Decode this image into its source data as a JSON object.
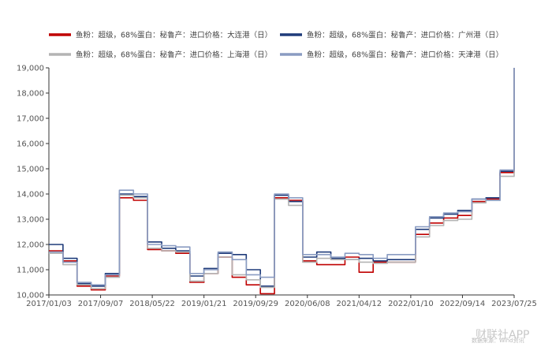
{
  "chart_data": {
    "type": "line",
    "title": "",
    "xlabel": "",
    "ylabel": "",
    "ylim": [
      10000,
      19000
    ],
    "y_ticks": [
      "10,000",
      "11,000",
      "12,000",
      "13,000",
      "14,000",
      "15,000",
      "16,000",
      "17,000",
      "18,000",
      "19,000"
    ],
    "x_ticks": [
      "2017/01/03",
      "2017/09/07",
      "2018/05/22",
      "2019/01/21",
      "2019/09/29",
      "2020/06/08",
      "2021/04/12",
      "2022/01/10",
      "2022/09/14",
      "2023/07/25"
    ],
    "grid": false,
    "legend_position": "top",
    "series": [
      {
        "name": "鱼粉：超级，68%蛋白：秘鲁产：进口价格：大连港（日）",
        "color": "#c00000",
        "values": [
          11750,
          11350,
          10350,
          10200,
          10750,
          13850,
          13750,
          11800,
          11750,
          11650,
          10500,
          10850,
          11500,
          10700,
          10400,
          10050,
          13850,
          13750,
          11350,
          11200,
          11200,
          11500,
          10900,
          11300,
          11300,
          11300,
          12400,
          12850,
          13050,
          13150,
          13700,
          13800,
          14850,
          19000
        ]
      },
      {
        "name": "鱼粉：超级，68%蛋白：秘鲁产：进口价格：广州港（日）",
        "color": "#1f3b7a",
        "values": [
          12000,
          11450,
          10450,
          10350,
          10850,
          14000,
          13900,
          12100,
          11850,
          11750,
          10750,
          11050,
          11650,
          11600,
          11000,
          10350,
          13950,
          13700,
          11500,
          11700,
          11450,
          11400,
          11450,
          11350,
          11400,
          11400,
          12600,
          13050,
          13200,
          13350,
          13800,
          13850,
          14900,
          19000
        ]
      },
      {
        "name": "鱼粉：超级，68%蛋白：秘鲁产：进口价格：上海港（日）",
        "color": "#b4b4b4",
        "values": [
          11650,
          11200,
          10400,
          10250,
          10700,
          13950,
          13850,
          11850,
          11750,
          11700,
          10550,
          10850,
          11500,
          10800,
          10600,
          10300,
          13800,
          13550,
          11300,
          11450,
          11400,
          11400,
          11300,
          11250,
          11300,
          11300,
          12300,
          12750,
          12950,
          13000,
          13650,
          13750,
          14700,
          19000
        ]
      },
      {
        "name": "鱼粉：超级，68%蛋白：秘鲁产：进口价格：天津港（日）",
        "color": "#8a9cc2",
        "values": [
          11700,
          11300,
          10500,
          10400,
          10800,
          14150,
          14000,
          12000,
          11950,
          11900,
          10850,
          11000,
          11700,
          11400,
          10800,
          10700,
          14000,
          13850,
          11600,
          11600,
          11500,
          11650,
          11600,
          11450,
          11600,
          11600,
          12700,
          13100,
          13250,
          13300,
          13800,
          13750,
          14950,
          19000
        ]
      }
    ]
  },
  "watermark": {
    "text": "财联社APP",
    "small": "数据来源：Wind资讯"
  }
}
